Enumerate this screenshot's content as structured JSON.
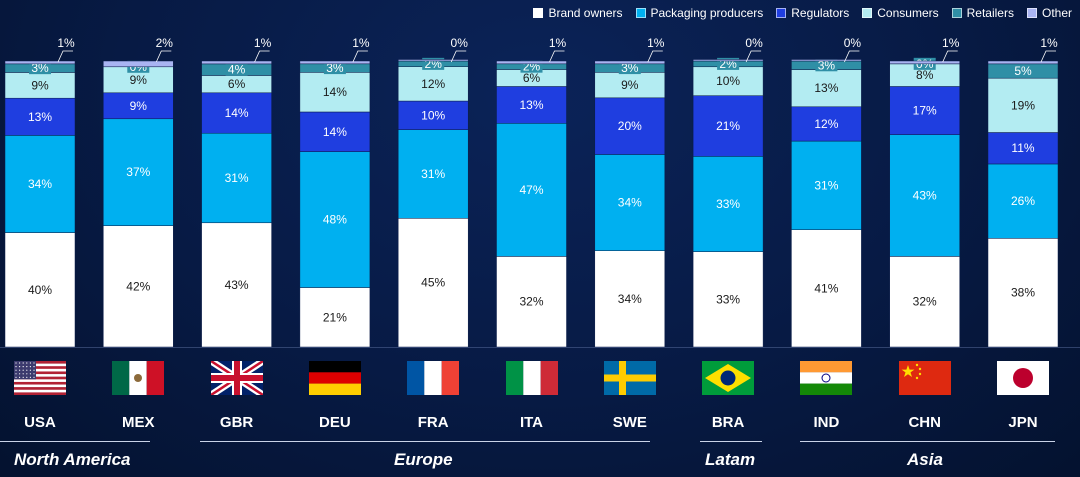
{
  "legend": {
    "items": [
      {
        "label": "Brand owners",
        "color": "#ffffff"
      },
      {
        "label": "Packaging producers",
        "color": "#00b0f0"
      },
      {
        "label": "Regulators",
        "color": "#1f3ee0"
      },
      {
        "label": "Consumers",
        "color": "#b3ecf2"
      },
      {
        "label": "Retailers",
        "color": "#2f8fa6"
      },
      {
        "label": "Other",
        "color": "#a9b4f2"
      }
    ]
  },
  "chart_data": {
    "type": "bar",
    "stacked": true,
    "categories": [
      "USA",
      "MEX",
      "GBR",
      "DEU",
      "FRA",
      "ITA",
      "SWE",
      "BRA",
      "IND",
      "CHN",
      "JPN"
    ],
    "series": [
      {
        "name": "Brand owners",
        "color": "#ffffff",
        "values": [
          40,
          42,
          43,
          21,
          45,
          32,
          34,
          33,
          41,
          32,
          38
        ]
      },
      {
        "name": "Packaging producers",
        "color": "#00b0f0",
        "values": [
          34,
          37,
          31,
          48,
          31,
          47,
          34,
          33,
          31,
          43,
          26
        ]
      },
      {
        "name": "Regulators",
        "color": "#1f3ee0",
        "values": [
          13,
          9,
          14,
          14,
          10,
          13,
          20,
          21,
          12,
          17,
          11
        ]
      },
      {
        "name": "Consumers",
        "color": "#b3ecf2",
        "values": [
          9,
          9,
          6,
          14,
          12,
          6,
          9,
          10,
          13,
          8,
          19
        ]
      },
      {
        "name": "Retailers",
        "color": "#2f8fa6",
        "values": [
          3,
          0,
          4,
          3,
          2,
          2,
          3,
          2,
          3,
          0,
          5
        ]
      },
      {
        "name": "Other",
        "color": "#a9b4f2",
        "values": [
          1,
          2,
          1,
          1,
          0,
          1,
          1,
          0,
          0,
          1,
          1
        ]
      }
    ],
    "value_suffix": "%",
    "ylim": [
      0,
      100
    ],
    "grid": false,
    "legend_position": "top-right"
  },
  "countries": [
    {
      "code": "USA",
      "flag": "usa-flag"
    },
    {
      "code": "MEX",
      "flag": "mexico-flag"
    },
    {
      "code": "GBR",
      "flag": "uk-flag"
    },
    {
      "code": "DEU",
      "flag": "germany-flag"
    },
    {
      "code": "FRA",
      "flag": "france-flag"
    },
    {
      "code": "ITA",
      "flag": "italy-flag"
    },
    {
      "code": "SWE",
      "flag": "sweden-flag"
    },
    {
      "code": "BRA",
      "flag": "brazil-flag"
    },
    {
      "code": "IND",
      "flag": "india-flag"
    },
    {
      "code": "CHN",
      "flag": "china-flag"
    },
    {
      "code": "JPN",
      "flag": "japan-flag"
    }
  ],
  "regions": [
    {
      "label": "North America"
    },
    {
      "label": "Europe"
    },
    {
      "label": "Latam"
    },
    {
      "label": "Asia"
    }
  ]
}
